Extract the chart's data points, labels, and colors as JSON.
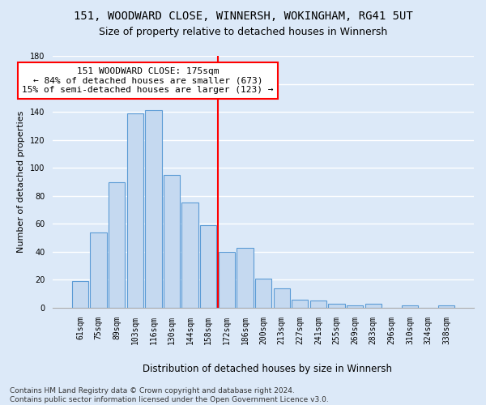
{
  "title1": "151, WOODWARD CLOSE, WINNERSH, WOKINGHAM, RG41 5UT",
  "title2": "Size of property relative to detached houses in Winnersh",
  "xlabel": "Distribution of detached houses by size in Winnersh",
  "ylabel": "Number of detached properties",
  "bar_labels": [
    "61sqm",
    "75sqm",
    "89sqm",
    "103sqm",
    "116sqm",
    "130sqm",
    "144sqm",
    "158sqm",
    "172sqm",
    "186sqm",
    "200sqm",
    "213sqm",
    "227sqm",
    "241sqm",
    "255sqm",
    "269sqm",
    "283sqm",
    "296sqm",
    "310sqm",
    "324sqm",
    "338sqm"
  ],
  "bar_values": [
    19,
    54,
    90,
    139,
    141,
    95,
    75,
    59,
    40,
    43,
    21,
    14,
    6,
    5,
    3,
    2,
    3,
    0,
    2,
    0,
    2
  ],
  "bar_color": "#c5d9f0",
  "bar_edgecolor": "#5b9bd5",
  "vline_x": 8.0,
  "vline_color": "red",
  "annotation_text": "151 WOODWARD CLOSE: 175sqm\n← 84% of detached houses are smaller (673)\n15% of semi-detached houses are larger (123) →",
  "annotation_box_color": "white",
  "annotation_box_edgecolor": "red",
  "ylim": [
    0,
    180
  ],
  "yticks": [
    0,
    20,
    40,
    60,
    80,
    100,
    120,
    140,
    160,
    180
  ],
  "background_color": "#dce9f8",
  "fig_background_color": "#dce9f8",
  "grid_color": "#ffffff",
  "footnote": "Contains HM Land Registry data © Crown copyright and database right 2024.\nContains public sector information licensed under the Open Government Licence v3.0.",
  "title1_fontsize": 10,
  "title2_fontsize": 9,
  "xlabel_fontsize": 8.5,
  "ylabel_fontsize": 8,
  "tick_fontsize": 7,
  "annotation_fontsize": 8,
  "footnote_fontsize": 6.5
}
